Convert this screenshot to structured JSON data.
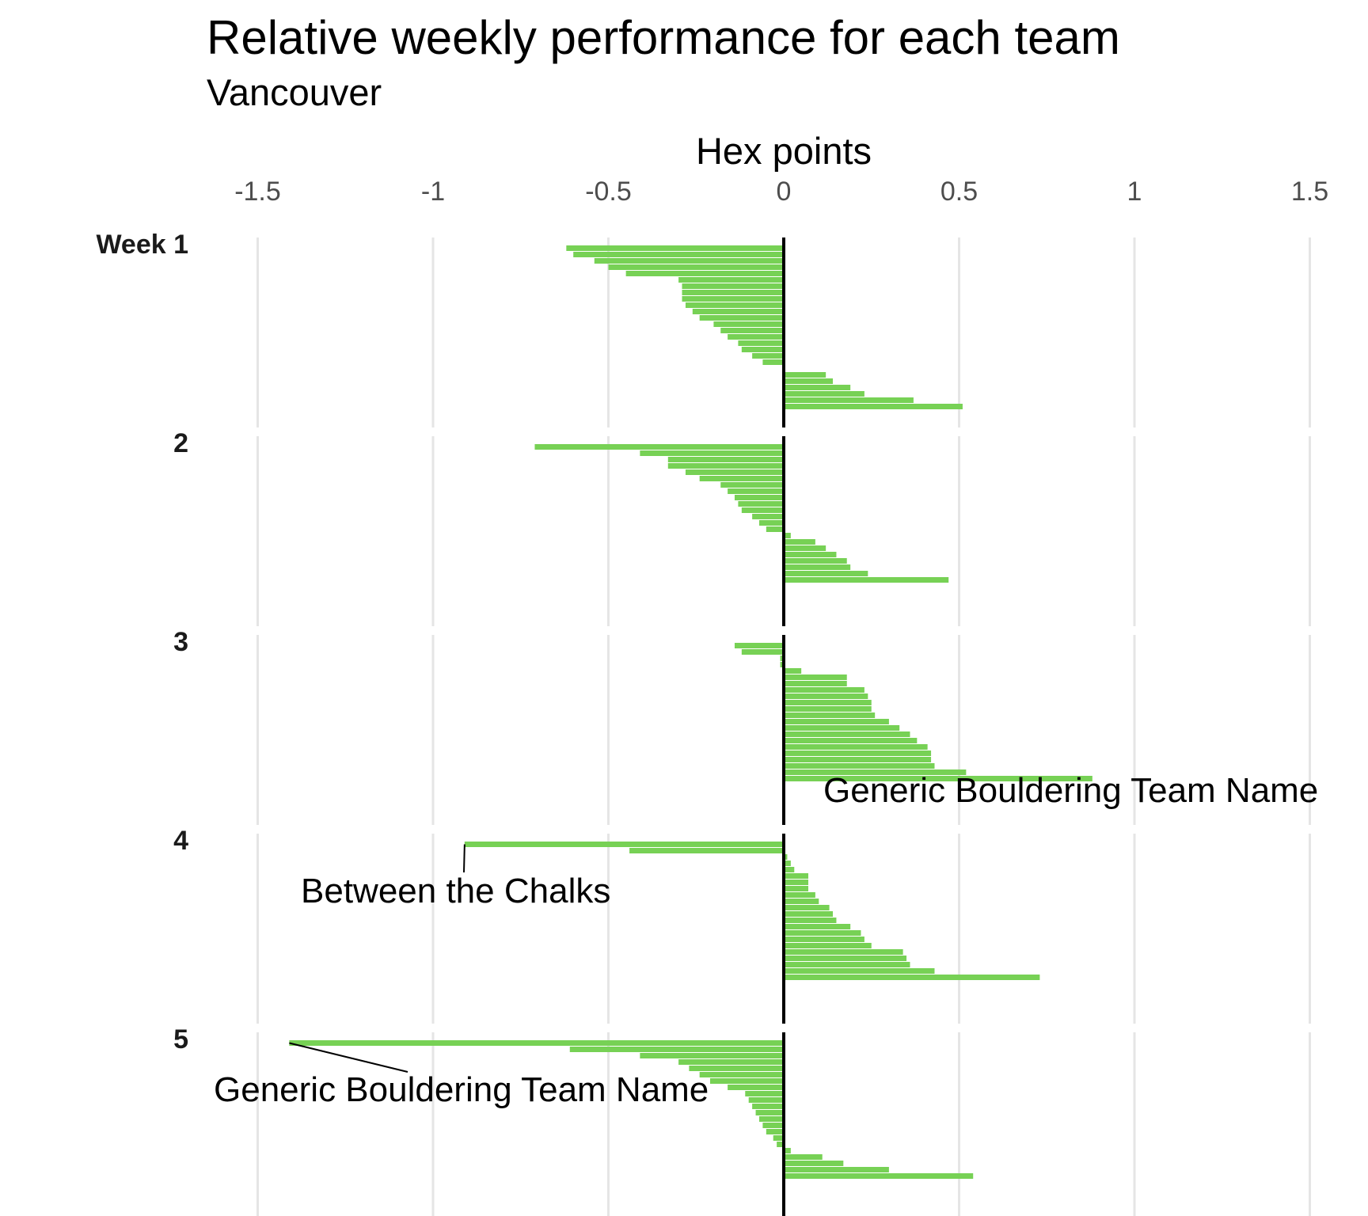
{
  "chart_data": {
    "type": "bar",
    "orientation": "horizontal",
    "title": "Relative weekly performance for each team",
    "subtitle": "Vancouver",
    "xlabel": "Hex points",
    "xlim": [
      -1.5,
      1.5
    ],
    "xticks": [
      -1.5,
      -1,
      -0.5,
      0,
      0.5,
      1,
      1.5
    ],
    "xtick_labels": [
      "-1.5",
      "-1",
      "-0.5",
      "0",
      "0.5",
      "1",
      "1.5"
    ],
    "grid": true,
    "bar_color": "#77d155",
    "zero_line_color": "#000000",
    "facets": [
      {
        "label": "Week 1",
        "values": [
          -0.62,
          -0.6,
          -0.54,
          -0.5,
          -0.45,
          -0.3,
          -0.29,
          -0.29,
          -0.29,
          -0.28,
          -0.26,
          -0.24,
          -0.2,
          -0.18,
          -0.16,
          -0.13,
          -0.12,
          -0.09,
          -0.06,
          0.0,
          0.12,
          0.14,
          0.19,
          0.23,
          0.37,
          0.51
        ]
      },
      {
        "label": "2",
        "values": [
          -0.71,
          -0.41,
          -0.33,
          -0.33,
          -0.28,
          -0.24,
          -0.18,
          -0.16,
          -0.14,
          -0.13,
          -0.12,
          -0.09,
          -0.07,
          -0.05,
          0.02,
          0.09,
          0.12,
          0.15,
          0.18,
          0.19,
          0.24,
          0.47
        ]
      },
      {
        "label": "3",
        "values": [
          -0.14,
          -0.12,
          -0.01,
          -0.01,
          0.05,
          0.18,
          0.18,
          0.23,
          0.24,
          0.25,
          0.25,
          0.26,
          0.3,
          0.33,
          0.36,
          0.38,
          0.41,
          0.42,
          0.42,
          0.43,
          0.52,
          0.88
        ]
      },
      {
        "label": "4",
        "values": [
          -0.91,
          -0.44,
          0.01,
          0.02,
          0.03,
          0.07,
          0.07,
          0.07,
          0.09,
          0.1,
          0.13,
          0.14,
          0.15,
          0.19,
          0.22,
          0.23,
          0.25,
          0.34,
          0.35,
          0.36,
          0.43,
          0.73
        ]
      },
      {
        "label": "5",
        "values": [
          -1.41,
          -0.61,
          -0.41,
          -0.3,
          -0.27,
          -0.24,
          -0.21,
          -0.16,
          -0.11,
          -0.1,
          -0.09,
          -0.08,
          -0.07,
          -0.06,
          -0.05,
          -0.03,
          -0.02,
          0.02,
          0.11,
          0.17,
          0.3,
          0.54
        ]
      }
    ],
    "annotations": [
      {
        "text": "Generic Bouldering Team Name",
        "facet": 2,
        "x": 0.88
      },
      {
        "text": "Between the Chalks",
        "facet": 3,
        "x": -0.91
      },
      {
        "text": "Generic Bouldering Team Name",
        "facet": 4,
        "x": -1.41
      }
    ]
  }
}
